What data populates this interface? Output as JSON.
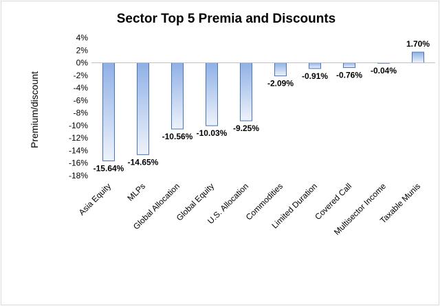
{
  "chart_data": {
    "type": "bar",
    "title": "Sector Top 5 Premia and Discounts",
    "xlabel": "",
    "ylabel": "Premium/discount",
    "ylim": [
      -18,
      4
    ],
    "yticks": [
      4,
      2,
      0,
      -2,
      -4,
      -6,
      -8,
      -10,
      -12,
      -14,
      -16,
      -18
    ],
    "ytick_labels": [
      "4%",
      "2%",
      "0%",
      "-2%",
      "-4%",
      "-6%",
      "-8%",
      "-10%",
      "-12%",
      "-14%",
      "-16%",
      "-18%"
    ],
    "categories": [
      "Asia Equity",
      "MLPs",
      "Global Allocation",
      "Global Equity",
      "U.S. Allocation",
      "Commodities",
      "Limited Duration",
      "Covered Call",
      "Multisector Income",
      "Taxable Munis"
    ],
    "values": [
      -15.64,
      -14.65,
      -10.56,
      -10.03,
      -9.25,
      -2.09,
      -0.91,
      -0.76,
      -0.04,
      1.7
    ],
    "data_labels": [
      "-15.64%",
      "-14.65%",
      "-10.56%",
      "-10.03%",
      "-9.25%",
      "-2.09%",
      "-0.91%",
      "-0.76%",
      "-0.04%",
      "1.70%"
    ],
    "grid": false,
    "legend": "none",
    "bar_color": "#4472c4"
  }
}
